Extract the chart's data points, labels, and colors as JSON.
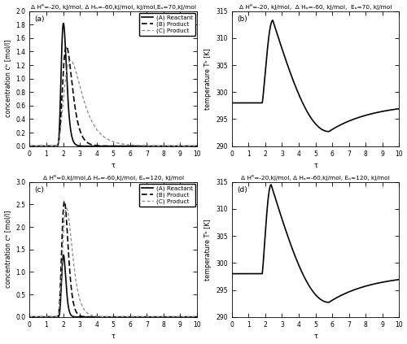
{
  "fig_width": 5.0,
  "fig_height": 4.23,
  "dpi": 100,
  "titles": [
    "Δ Hᴿ=-20, kJ/mol, Δ Hₐ=-60,kJ/mol, kJ/mol,Eₐ=70,kJ/mol",
    "Δ Hᴿ=-20, kJ/mol,  Δ Hₐ=-60, kJ/mol,  Eₐ=70, kJ/mol",
    "Δ Hᴿ=0,kJ/mol,Δ Hₐ=-60,kJ/mol, Eₐ=120, kJ/mol",
    "Δ Hᴿ=-20,kJ/mol, Δ Hₐ=-60,kJ/mol, Eₐ=120, kJ/mol"
  ],
  "panel_labels": [
    "(a)",
    "(b)",
    "(c)",
    "(d)"
  ],
  "xlim": [
    0,
    10
  ],
  "ylim_conc_a": [
    0,
    2.0
  ],
  "yticks_conc_a": [
    0,
    0.2,
    0.4,
    0.6,
    0.8,
    1.0,
    1.2,
    1.4,
    1.6,
    1.8,
    2.0
  ],
  "ylim_temp_b": [
    290,
    315
  ],
  "yticks_temp_b": [
    290,
    295,
    300,
    305,
    310,
    315
  ],
  "ylim_conc_c": [
    0,
    3.0
  ],
  "yticks_conc_c": [
    0,
    0.5,
    1.0,
    1.5,
    2.0,
    2.5,
    3.0
  ],
  "ylim_temp_d": [
    290,
    315
  ],
  "yticks_temp_d": [
    290,
    295,
    300,
    305,
    310,
    315
  ],
  "xlabel": "τ",
  "ylabel_conc": "concentration cᵇ [mol/l]",
  "ylabel_temp": "temperature Tᵇ [K]",
  "legend_entries": [
    "(A) Reactant",
    "(B) Product",
    "(C) Product"
  ],
  "background_color": "#ffffff"
}
